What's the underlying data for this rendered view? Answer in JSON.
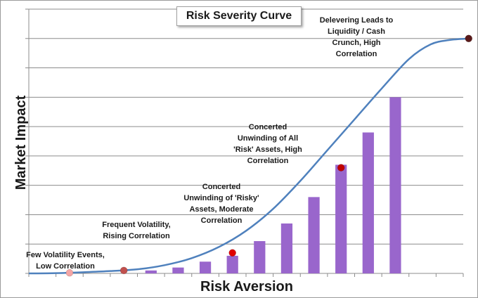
{
  "chart_data": {
    "type": "bar",
    "title": "Risk Severity Curve",
    "xlabel": "Risk Aversion",
    "ylabel": "Market Impact",
    "grid": true,
    "xlim": [
      0,
      16
    ],
    "ylim": [
      0,
      9
    ],
    "bar_color": "#9966cc",
    "curve_color": "#4f81bd",
    "bars": [
      {
        "x": 4.5,
        "value": 0.1
      },
      {
        "x": 5.5,
        "value": 0.2
      },
      {
        "x": 6.5,
        "value": 0.4
      },
      {
        "x": 7.5,
        "value": 0.6
      },
      {
        "x": 8.5,
        "value": 1.1
      },
      {
        "x": 9.5,
        "value": 1.7
      },
      {
        "x": 10.5,
        "value": 2.6
      },
      {
        "x": 11.5,
        "value": 3.7
      },
      {
        "x": 12.5,
        "value": 4.8
      },
      {
        "x": 13.5,
        "value": 6.0
      }
    ],
    "curve": [
      [
        0.0,
        0.0
      ],
      [
        1.0,
        0.01
      ],
      [
        2.0,
        0.04
      ],
      [
        3.0,
        0.08
      ],
      [
        4.0,
        0.14
      ],
      [
        5.0,
        0.28
      ],
      [
        6.0,
        0.52
      ],
      [
        7.0,
        0.9
      ],
      [
        8.0,
        1.45
      ],
      [
        9.0,
        2.2
      ],
      [
        10.0,
        3.15
      ],
      [
        11.0,
        4.2
      ],
      [
        12.0,
        5.25
      ],
      [
        13.0,
        6.3
      ],
      [
        14.0,
        7.3
      ],
      [
        14.8,
        7.8
      ],
      [
        15.5,
        7.95
      ],
      [
        16.2,
        8.0
      ]
    ],
    "markers": [
      {
        "name": "few-volatility",
        "x": 1.5,
        "y": 0.02,
        "color": "#f4a6a6"
      },
      {
        "name": "frequent-volatility",
        "x": 3.5,
        "y": 0.1,
        "color": "#c0504d"
      },
      {
        "name": "concerted-risky",
        "x": 7.5,
        "y": 0.7,
        "color": "#e00000"
      },
      {
        "name": "concerted-all",
        "x": 11.5,
        "y": 3.6,
        "color": "#c00000"
      },
      {
        "name": "delevering",
        "x": 16.2,
        "y": 8.0,
        "color": "#5a1a1a"
      }
    ],
    "annotations": [
      "Few Volatility Events,\nLow Correlation",
      "Frequent Volatility,\nRising Correlation",
      "Concerted\nUnwinding of 'Risky'\nAssets, Moderate\nCorrelation",
      "Concerted\nUnwinding of All\n'Risk' Assets, High\nCorrelation",
      "Delevering Leads to\nLiquidity / Cash\nCrunch, High\nCorrelation"
    ]
  }
}
